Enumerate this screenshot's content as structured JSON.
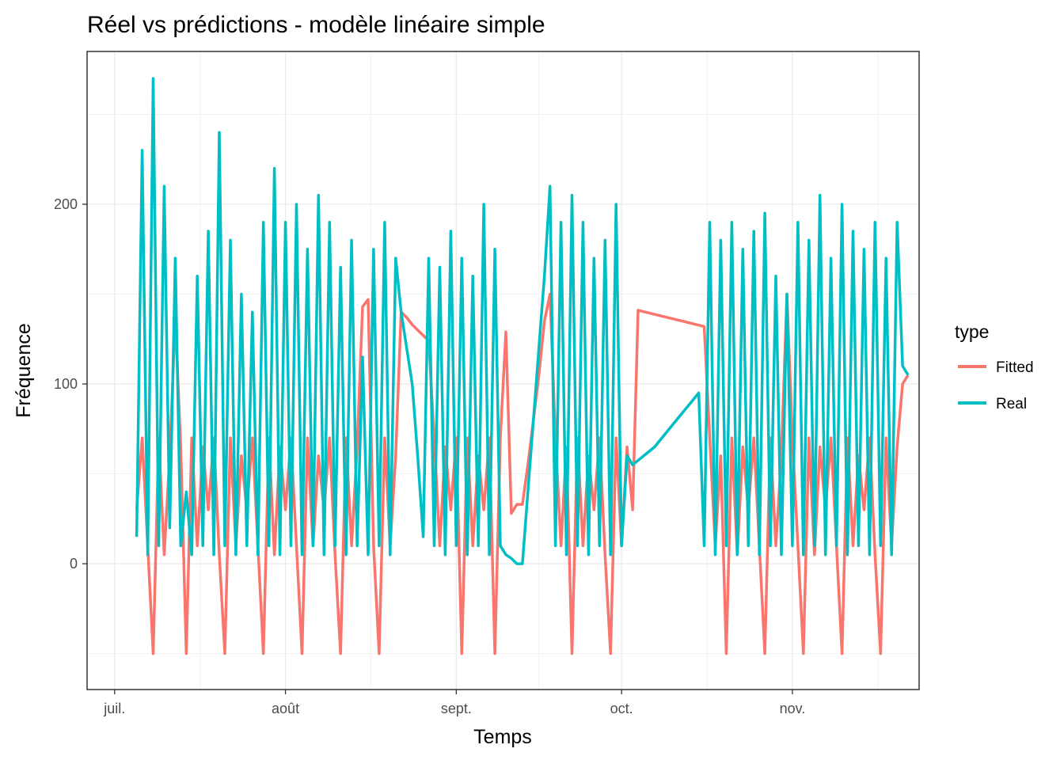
{
  "chart_data": {
    "type": "line",
    "title": "Réel vs prédictions - modèle linéaire simple",
    "xlabel": "Temps",
    "ylabel": "Fréquence",
    "x_axis_type": "date",
    "xlim": [
      "2019-06-26",
      "2019-11-24"
    ],
    "ylim": [
      -70,
      285
    ],
    "x_ticks": [
      {
        "date": "2019-07-01",
        "label": "juil."
      },
      {
        "date": "2019-08-01",
        "label": "août"
      },
      {
        "date": "2019-09-01",
        "label": "sept."
      },
      {
        "date": "2019-10-01",
        "label": "oct."
      },
      {
        "date": "2019-11-01",
        "label": "nov."
      }
    ],
    "y_ticks": [
      0,
      100,
      200
    ],
    "grid": true,
    "legend": {
      "title": "type",
      "position": "right"
    },
    "series": [
      {
        "name": "Fitted",
        "color": "#F8766D",
        "points": [
          [
            "2019-07-05",
            30
          ],
          [
            "2019-07-06",
            70
          ],
          [
            "2019-07-07",
            10
          ],
          [
            "2019-07-08",
            -50
          ],
          [
            "2019-07-09",
            70
          ],
          [
            "2019-07-10",
            5
          ],
          [
            "2019-07-11",
            60
          ],
          [
            "2019-07-12",
            137
          ],
          [
            "2019-07-13",
            65
          ],
          [
            "2019-07-14",
            -50
          ],
          [
            "2019-07-15",
            70
          ],
          [
            "2019-07-16",
            10
          ],
          [
            "2019-07-17",
            65
          ],
          [
            "2019-07-18",
            30
          ],
          [
            "2019-07-19",
            70
          ],
          [
            "2019-07-20",
            5
          ],
          [
            "2019-07-21",
            -50
          ],
          [
            "2019-07-22",
            70
          ],
          [
            "2019-07-23",
            10
          ],
          [
            "2019-07-24",
            60
          ],
          [
            "2019-07-25",
            30
          ],
          [
            "2019-07-26",
            70
          ],
          [
            "2019-07-27",
            10
          ],
          [
            "2019-07-28",
            -50
          ],
          [
            "2019-07-29",
            70
          ],
          [
            "2019-07-30",
            5
          ],
          [
            "2019-07-31",
            65
          ],
          [
            "2019-08-01",
            30
          ],
          [
            "2019-08-02",
            70
          ],
          [
            "2019-08-03",
            10
          ],
          [
            "2019-08-04",
            -50
          ],
          [
            "2019-08-05",
            70
          ],
          [
            "2019-08-06",
            10
          ],
          [
            "2019-08-07",
            60
          ],
          [
            "2019-08-08",
            30
          ],
          [
            "2019-08-09",
            70
          ],
          [
            "2019-08-10",
            5
          ],
          [
            "2019-08-11",
            -50
          ],
          [
            "2019-08-12",
            70
          ],
          [
            "2019-08-13",
            10
          ],
          [
            "2019-08-14",
            65
          ],
          [
            "2019-08-15",
            143
          ],
          [
            "2019-08-16",
            147
          ],
          [
            "2019-08-17",
            10
          ],
          [
            "2019-08-18",
            -50
          ],
          [
            "2019-08-19",
            70
          ],
          [
            "2019-08-20",
            10
          ],
          [
            "2019-08-21",
            60
          ],
          [
            "2019-08-22",
            140
          ],
          [
            "2019-08-23",
            137
          ],
          [
            "2019-08-24",
            133
          ],
          [
            "2019-08-25",
            130
          ],
          [
            "2019-08-26",
            127
          ],
          [
            "2019-08-27",
            124
          ],
          [
            "2019-08-28",
            70
          ],
          [
            "2019-08-29",
            10
          ],
          [
            "2019-08-30",
            65
          ],
          [
            "2019-08-31",
            30
          ],
          [
            "2019-09-01",
            70
          ],
          [
            "2019-09-02",
            -50
          ],
          [
            "2019-09-03",
            70
          ],
          [
            "2019-09-04",
            10
          ],
          [
            "2019-09-05",
            60
          ],
          [
            "2019-09-06",
            30
          ],
          [
            "2019-09-07",
            70
          ],
          [
            "2019-09-08",
            -50
          ],
          [
            "2019-09-09",
            70
          ],
          [
            "2019-09-10",
            129
          ],
          [
            "2019-09-11",
            28
          ],
          [
            "2019-09-12",
            33
          ],
          [
            "2019-09-13",
            33
          ],
          [
            "2019-09-14",
            55
          ],
          [
            "2019-09-15",
            80
          ],
          [
            "2019-09-16",
            105
          ],
          [
            "2019-09-17",
            135
          ],
          [
            "2019-09-18",
            150
          ],
          [
            "2019-09-19",
            70
          ],
          [
            "2019-09-20",
            10
          ],
          [
            "2019-09-21",
            65
          ],
          [
            "2019-09-22",
            -50
          ],
          [
            "2019-09-23",
            70
          ],
          [
            "2019-09-24",
            10
          ],
          [
            "2019-09-25",
            60
          ],
          [
            "2019-09-26",
            30
          ],
          [
            "2019-09-27",
            70
          ],
          [
            "2019-09-28",
            5
          ],
          [
            "2019-09-29",
            -50
          ],
          [
            "2019-09-30",
            70
          ],
          [
            "2019-10-01",
            10
          ],
          [
            "2019-10-02",
            65
          ],
          [
            "2019-10-03",
            30
          ],
          [
            "2019-10-04",
            141
          ],
          [
            "2019-10-08",
            138
          ],
          [
            "2019-10-12",
            135
          ],
          [
            "2019-10-16",
            132
          ],
          [
            "2019-10-17",
            70
          ],
          [
            "2019-10-18",
            10
          ],
          [
            "2019-10-19",
            60
          ],
          [
            "2019-10-20",
            -50
          ],
          [
            "2019-10-21",
            70
          ],
          [
            "2019-10-22",
            5
          ],
          [
            "2019-10-23",
            65
          ],
          [
            "2019-10-24",
            30
          ],
          [
            "2019-10-25",
            70
          ],
          [
            "2019-10-26",
            10
          ],
          [
            "2019-10-27",
            -50
          ],
          [
            "2019-10-28",
            70
          ],
          [
            "2019-10-29",
            10
          ],
          [
            "2019-10-30",
            60
          ],
          [
            "2019-10-31",
            150
          ],
          [
            "2019-11-01",
            70
          ],
          [
            "2019-11-02",
            10
          ],
          [
            "2019-11-03",
            -50
          ],
          [
            "2019-11-04",
            70
          ],
          [
            "2019-11-05",
            5
          ],
          [
            "2019-11-06",
            65
          ],
          [
            "2019-11-07",
            30
          ],
          [
            "2019-11-08",
            70
          ],
          [
            "2019-11-09",
            10
          ],
          [
            "2019-11-10",
            -50
          ],
          [
            "2019-11-11",
            70
          ],
          [
            "2019-11-12",
            10
          ],
          [
            "2019-11-13",
            60
          ],
          [
            "2019-11-14",
            30
          ],
          [
            "2019-11-15",
            70
          ],
          [
            "2019-11-16",
            5
          ],
          [
            "2019-11-17",
            -50
          ],
          [
            "2019-11-18",
            70
          ],
          [
            "2019-11-19",
            10
          ],
          [
            "2019-11-20",
            65
          ],
          [
            "2019-11-21",
            100
          ],
          [
            "2019-11-22",
            105
          ]
        ]
      },
      {
        "name": "Real",
        "color": "#00BFC4",
        "points": [
          [
            "2019-07-05",
            15
          ],
          [
            "2019-07-06",
            230
          ],
          [
            "2019-07-07",
            5
          ],
          [
            "2019-07-08",
            270
          ],
          [
            "2019-07-09",
            10
          ],
          [
            "2019-07-10",
            210
          ],
          [
            "2019-07-11",
            20
          ],
          [
            "2019-07-12",
            170
          ],
          [
            "2019-07-13",
            10
          ],
          [
            "2019-07-14",
            40
          ],
          [
            "2019-07-15",
            5
          ],
          [
            "2019-07-16",
            160
          ],
          [
            "2019-07-17",
            10
          ],
          [
            "2019-07-18",
            185
          ],
          [
            "2019-07-19",
            5
          ],
          [
            "2019-07-20",
            240
          ],
          [
            "2019-07-21",
            10
          ],
          [
            "2019-07-22",
            180
          ],
          [
            "2019-07-23",
            5
          ],
          [
            "2019-07-24",
            150
          ],
          [
            "2019-07-25",
            10
          ],
          [
            "2019-07-26",
            140
          ],
          [
            "2019-07-27",
            5
          ],
          [
            "2019-07-28",
            190
          ],
          [
            "2019-07-29",
            10
          ],
          [
            "2019-07-30",
            220
          ],
          [
            "2019-07-31",
            5
          ],
          [
            "2019-08-01",
            190
          ],
          [
            "2019-08-02",
            10
          ],
          [
            "2019-08-03",
            200
          ],
          [
            "2019-08-04",
            5
          ],
          [
            "2019-08-05",
            175
          ],
          [
            "2019-08-06",
            10
          ],
          [
            "2019-08-07",
            205
          ],
          [
            "2019-08-08",
            5
          ],
          [
            "2019-08-09",
            190
          ],
          [
            "2019-08-10",
            10
          ],
          [
            "2019-08-11",
            165
          ],
          [
            "2019-08-12",
            5
          ],
          [
            "2019-08-13",
            180
          ],
          [
            "2019-08-14",
            10
          ],
          [
            "2019-08-15",
            115
          ],
          [
            "2019-08-16",
            5
          ],
          [
            "2019-08-17",
            175
          ],
          [
            "2019-08-18",
            10
          ],
          [
            "2019-08-19",
            190
          ],
          [
            "2019-08-20",
            5
          ],
          [
            "2019-08-21",
            170
          ],
          [
            "2019-08-22",
            140
          ],
          [
            "2019-08-23",
            120
          ],
          [
            "2019-08-24",
            100
          ],
          [
            "2019-08-25",
            60
          ],
          [
            "2019-08-26",
            15
          ],
          [
            "2019-08-27",
            170
          ],
          [
            "2019-08-28",
            10
          ],
          [
            "2019-08-29",
            165
          ],
          [
            "2019-08-30",
            5
          ],
          [
            "2019-08-31",
            185
          ],
          [
            "2019-09-01",
            10
          ],
          [
            "2019-09-02",
            170
          ],
          [
            "2019-09-03",
            5
          ],
          [
            "2019-09-04",
            160
          ],
          [
            "2019-09-05",
            10
          ],
          [
            "2019-09-06",
            200
          ],
          [
            "2019-09-07",
            5
          ],
          [
            "2019-09-08",
            175
          ],
          [
            "2019-09-09",
            10
          ],
          [
            "2019-09-10",
            5
          ],
          [
            "2019-09-11",
            3
          ],
          [
            "2019-09-12",
            0
          ],
          [
            "2019-09-13",
            0
          ],
          [
            "2019-09-14",
            40
          ],
          [
            "2019-09-15",
            80
          ],
          [
            "2019-09-16",
            120
          ],
          [
            "2019-09-17",
            160
          ],
          [
            "2019-09-18",
            210
          ],
          [
            "2019-09-19",
            10
          ],
          [
            "2019-09-20",
            190
          ],
          [
            "2019-09-21",
            5
          ],
          [
            "2019-09-22",
            205
          ],
          [
            "2019-09-23",
            10
          ],
          [
            "2019-09-24",
            190
          ],
          [
            "2019-09-25",
            5
          ],
          [
            "2019-09-26",
            170
          ],
          [
            "2019-09-27",
            10
          ],
          [
            "2019-09-28",
            180
          ],
          [
            "2019-09-29",
            5
          ],
          [
            "2019-09-30",
            200
          ],
          [
            "2019-10-01",
            10
          ],
          [
            "2019-10-02",
            60
          ],
          [
            "2019-10-03",
            55
          ],
          [
            "2019-10-07",
            65
          ],
          [
            "2019-10-11",
            80
          ],
          [
            "2019-10-15",
            95
          ],
          [
            "2019-10-16",
            10
          ],
          [
            "2019-10-17",
            190
          ],
          [
            "2019-10-18",
            5
          ],
          [
            "2019-10-19",
            180
          ],
          [
            "2019-10-20",
            10
          ],
          [
            "2019-10-21",
            190
          ],
          [
            "2019-10-22",
            5
          ],
          [
            "2019-10-23",
            175
          ],
          [
            "2019-10-24",
            10
          ],
          [
            "2019-10-25",
            185
          ],
          [
            "2019-10-26",
            5
          ],
          [
            "2019-10-27",
            195
          ],
          [
            "2019-10-28",
            10
          ],
          [
            "2019-10-29",
            160
          ],
          [
            "2019-10-30",
            5
          ],
          [
            "2019-10-31",
            150
          ],
          [
            "2019-11-01",
            10
          ],
          [
            "2019-11-02",
            190
          ],
          [
            "2019-11-03",
            5
          ],
          [
            "2019-11-04",
            180
          ],
          [
            "2019-11-05",
            10
          ],
          [
            "2019-11-06",
            205
          ],
          [
            "2019-11-07",
            5
          ],
          [
            "2019-11-08",
            170
          ],
          [
            "2019-11-09",
            10
          ],
          [
            "2019-11-10",
            200
          ],
          [
            "2019-11-11",
            5
          ],
          [
            "2019-11-12",
            185
          ],
          [
            "2019-11-13",
            10
          ],
          [
            "2019-11-14",
            175
          ],
          [
            "2019-11-15",
            5
          ],
          [
            "2019-11-16",
            190
          ],
          [
            "2019-11-17",
            10
          ],
          [
            "2019-11-18",
            170
          ],
          [
            "2019-11-19",
            5
          ],
          [
            "2019-11-20",
            190
          ],
          [
            "2019-11-21",
            110
          ],
          [
            "2019-11-22",
            105
          ]
        ]
      }
    ]
  }
}
